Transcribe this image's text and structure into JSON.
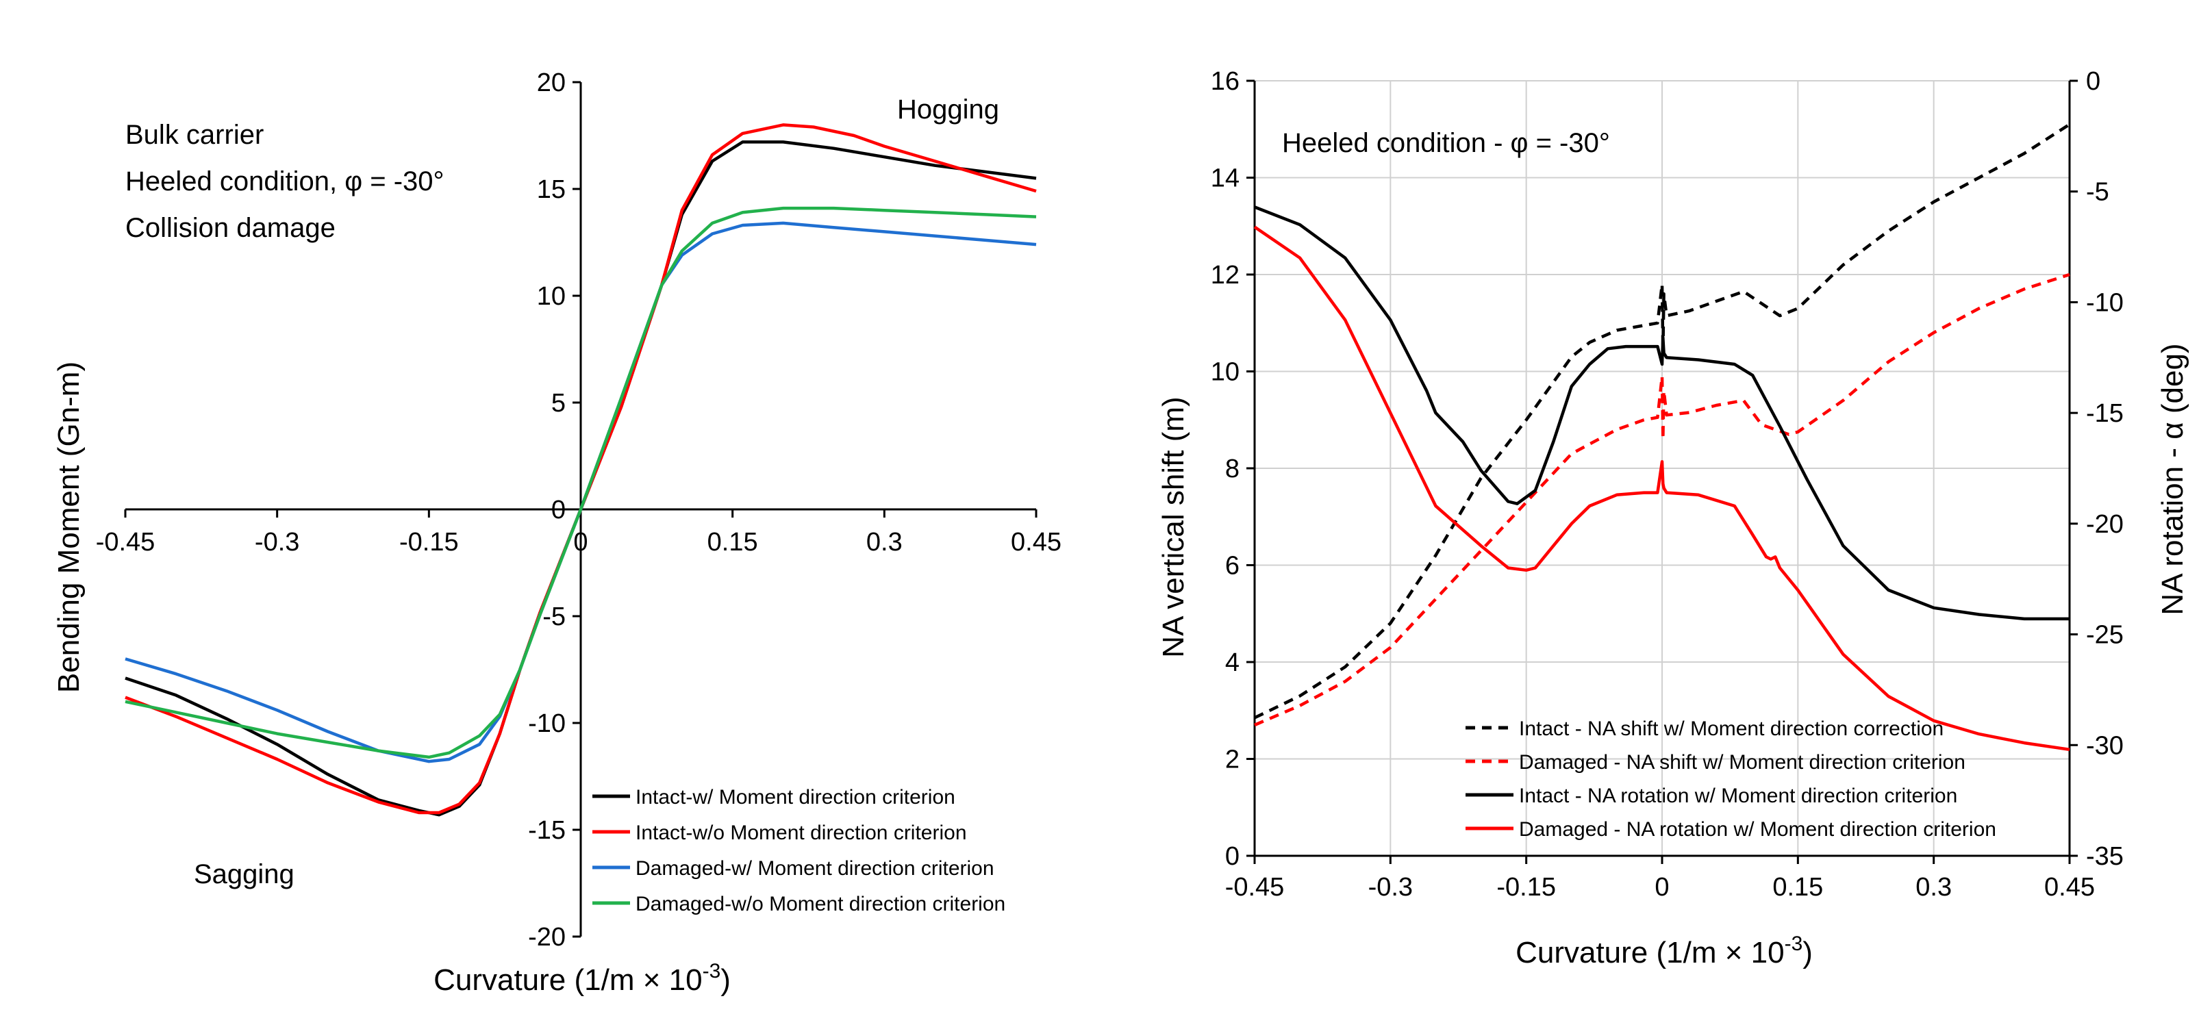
{
  "chart_data": [
    {
      "type": "line",
      "title": "",
      "xlabel": "Curvature (1/m × 10",
      "xlabel_sup": "-3",
      "xlabel_end": ")",
      "ylabel": "Bending Moment (Gn-m)",
      "xlim": [
        -0.45,
        0.45
      ],
      "ylim": [
        -20,
        20
      ],
      "xticks": [
        "-0.45",
        "-0.3",
        "-0.15",
        "0",
        "0.15",
        "0.3",
        "0.45"
      ],
      "xtick_values": [
        -0.45,
        -0.3,
        -0.15,
        0,
        0.15,
        0.3,
        0.45
      ],
      "yticks": [
        "-20",
        "-15",
        "-10",
        "-5",
        "0",
        "5",
        "10",
        "15",
        "20"
      ],
      "ytick_values": [
        -20,
        -15,
        -10,
        -5,
        0,
        5,
        10,
        15,
        20
      ],
      "grid": false,
      "legend_position": "bottom-right",
      "annotations": [
        "Bulk carrier",
        "Heeled condition, φ = -30°",
        "Collision damage",
        "Hogging",
        "Sagging"
      ],
      "series": [
        {
          "name": "Intact-w/ Moment direction criterion",
          "color": "#000000",
          "dash": "solid",
          "x": [
            -0.45,
            -0.4,
            -0.35,
            -0.3,
            -0.25,
            -0.2,
            -0.16,
            -0.14,
            -0.12,
            -0.1,
            -0.08,
            -0.06,
            -0.04,
            0,
            0.04,
            0.08,
            0.1,
            0.13,
            0.16,
            0.2,
            0.25,
            0.3,
            0.35,
            0.4,
            0.45
          ],
          "values": [
            -7.9,
            -8.7,
            -9.8,
            -11.0,
            -12.4,
            -13.6,
            -14.1,
            -14.3,
            -13.9,
            -12.9,
            -10.5,
            -7.5,
            -4.8,
            0,
            4.8,
            10.5,
            13.8,
            16.3,
            17.2,
            17.2,
            16.9,
            16.5,
            16.1,
            15.8,
            15.5
          ]
        },
        {
          "name": "Intact-w/o Moment direction criterion",
          "color": "#ff0000",
          "dash": "solid",
          "x": [
            -0.45,
            -0.4,
            -0.35,
            -0.3,
            -0.25,
            -0.2,
            -0.16,
            -0.14,
            -0.12,
            -0.1,
            -0.08,
            -0.06,
            -0.04,
            0,
            0.04,
            0.08,
            0.1,
            0.13,
            0.16,
            0.2,
            0.23,
            0.27,
            0.3,
            0.35,
            0.4,
            0.45
          ],
          "values": [
            -8.8,
            -9.7,
            -10.7,
            -11.7,
            -12.8,
            -13.7,
            -14.2,
            -14.2,
            -13.8,
            -12.8,
            -10.5,
            -7.5,
            -4.8,
            0,
            4.8,
            10.5,
            14.0,
            16.6,
            17.6,
            18.0,
            17.9,
            17.5,
            17.0,
            16.3,
            15.6,
            14.9
          ]
        },
        {
          "name": "Damaged-w/ Moment direction criterion",
          "color": "#1f6fd1",
          "dash": "solid",
          "x": [
            -0.45,
            -0.4,
            -0.35,
            -0.3,
            -0.25,
            -0.2,
            -0.15,
            -0.13,
            -0.1,
            -0.08,
            -0.06,
            -0.04,
            0,
            0.04,
            0.08,
            0.1,
            0.13,
            0.16,
            0.2,
            0.25,
            0.3,
            0.35,
            0.4,
            0.45
          ],
          "values": [
            -7.0,
            -7.7,
            -8.5,
            -9.4,
            -10.4,
            -11.3,
            -11.8,
            -11.7,
            -11.0,
            -9.7,
            -7.5,
            -4.9,
            0,
            5.2,
            10.5,
            11.9,
            12.9,
            13.3,
            13.4,
            13.2,
            13.0,
            12.8,
            12.6,
            12.4
          ]
        },
        {
          "name": "Damaged-w/o Moment direction criterion",
          "color": "#22b14c",
          "dash": "solid",
          "x": [
            -0.45,
            -0.4,
            -0.35,
            -0.3,
            -0.25,
            -0.2,
            -0.15,
            -0.13,
            -0.1,
            -0.08,
            -0.06,
            -0.04,
            0,
            0.04,
            0.08,
            0.1,
            0.13,
            0.16,
            0.2,
            0.25,
            0.3,
            0.35,
            0.4,
            0.45
          ],
          "values": [
            -9.0,
            -9.5,
            -10.0,
            -10.5,
            -10.9,
            -11.3,
            -11.6,
            -11.4,
            -10.6,
            -9.6,
            -7.5,
            -4.9,
            0,
            5.2,
            10.5,
            12.1,
            13.4,
            13.9,
            14.1,
            14.1,
            14.0,
            13.9,
            13.8,
            13.7
          ]
        }
      ]
    },
    {
      "type": "line",
      "title": "",
      "xlabel": "Curvature (1/m × 10",
      "xlabel_sup": "-3",
      "xlabel_end": ")",
      "ylabel": "NA vertical shift (m)",
      "y2label": "NA rotation - α (deg)",
      "xlim": [
        -0.45,
        0.45
      ],
      "ylim": [
        0,
        16
      ],
      "y2lim": [
        -35,
        0
      ],
      "xticks": [
        "-0.45",
        "-0.3",
        "-0.15",
        "0",
        "0.15",
        "0.3",
        "0.45"
      ],
      "xtick_values": [
        -0.45,
        -0.3,
        -0.15,
        0,
        0.15,
        0.3,
        0.45
      ],
      "yticks": [
        "0",
        "2",
        "4",
        "6",
        "8",
        "10",
        "12",
        "14",
        "16"
      ],
      "ytick_values": [
        0,
        2,
        4,
        6,
        8,
        10,
        12,
        14,
        16
      ],
      "y2ticks": [
        "0",
        "-5",
        "-10",
        "-15",
        "-20",
        "-25",
        "-30",
        "-35"
      ],
      "y2tick_values": [
        0,
        -5,
        -10,
        -15,
        -20,
        -25,
        -30,
        -35
      ],
      "grid": true,
      "legend_position": "bottom-right",
      "annotations": [
        "Heeled condition - φ = -30°"
      ],
      "series": [
        {
          "name": "Intact - NA shift w/ Moment direction correction",
          "color": "#000000",
          "dash": "dashed",
          "axis": "left",
          "x": [
            -0.45,
            -0.4,
            -0.35,
            -0.3,
            -0.25,
            -0.2,
            -0.15,
            -0.1,
            -0.08,
            -0.05,
            -0.02,
            -0.005,
            0.0,
            0.001,
            0.002,
            0.005,
            0.03,
            0.06,
            0.09,
            0.11,
            0.13,
            0.15,
            0.2,
            0.25,
            0.3,
            0.35,
            0.4,
            0.45
          ],
          "values": [
            2.85,
            3.3,
            3.9,
            4.8,
            6.2,
            7.8,
            9.0,
            10.3,
            10.6,
            10.85,
            10.95,
            11.0,
            11.8,
            10.4,
            11.6,
            11.15,
            11.25,
            11.45,
            11.65,
            11.4,
            11.15,
            11.3,
            12.2,
            12.9,
            13.5,
            14.0,
            14.5,
            15.1
          ]
        },
        {
          "name": "Damaged - NA shift w/ Moment direction criterion",
          "color": "#ff0000",
          "dash": "dashed",
          "axis": "left",
          "x": [
            -0.45,
            -0.4,
            -0.35,
            -0.3,
            -0.25,
            -0.2,
            -0.15,
            -0.1,
            -0.08,
            -0.05,
            -0.02,
            -0.005,
            0.0,
            0.001,
            0.002,
            0.005,
            0.03,
            0.06,
            0.09,
            0.11,
            0.14,
            0.15,
            0.2,
            0.25,
            0.3,
            0.35,
            0.4,
            0.45
          ],
          "values": [
            2.7,
            3.1,
            3.6,
            4.3,
            5.3,
            6.3,
            7.3,
            8.3,
            8.5,
            8.8,
            9.0,
            9.05,
            9.9,
            8.6,
            9.6,
            9.1,
            9.15,
            9.3,
            9.4,
            8.9,
            8.7,
            8.75,
            9.4,
            10.2,
            10.8,
            11.3,
            11.7,
            12.0
          ]
        },
        {
          "name": "Intact - NA rotation w/ Moment direction criterion",
          "color": "#000000",
          "dash": "solid",
          "axis": "right",
          "x": [
            -0.45,
            -0.4,
            -0.35,
            -0.3,
            -0.26,
            -0.25,
            -0.22,
            -0.2,
            -0.17,
            -0.16,
            -0.14,
            -0.12,
            -0.1,
            -0.08,
            -0.06,
            -0.04,
            -0.02,
            -0.005,
            0.0,
            0.001,
            0.002,
            0.005,
            0.04,
            0.08,
            0.1,
            0.13,
            0.16,
            0.2,
            0.25,
            0.3,
            0.35,
            0.4,
            0.45
          ],
          "values": [
            -5.7,
            -6.5,
            -8.0,
            -10.8,
            -14.0,
            -15.0,
            -16.3,
            -17.6,
            -19.0,
            -19.1,
            -18.5,
            -16.3,
            -13.8,
            -12.8,
            -12.1,
            -12.0,
            -12.0,
            -12.0,
            -12.8,
            -11.6,
            -12.3,
            -12.5,
            -12.6,
            -12.8,
            -13.3,
            -15.6,
            -18.0,
            -21.0,
            -23.0,
            -23.8,
            -24.1,
            -24.3,
            -24.3
          ]
        },
        {
          "name": "Damaged - NA rotation w/ Moment direction criterion",
          "color": "#ff0000",
          "dash": "solid",
          "axis": "right",
          "x": [
            -0.45,
            -0.4,
            -0.35,
            -0.3,
            -0.25,
            -0.2,
            -0.17,
            -0.15,
            -0.14,
            -0.12,
            -0.1,
            -0.08,
            -0.05,
            -0.02,
            -0.005,
            0.0,
            0.001,
            0.002,
            0.005,
            0.04,
            0.08,
            0.1,
            0.115,
            0.12,
            0.125,
            0.13,
            0.15,
            0.2,
            0.25,
            0.3,
            0.35,
            0.4,
            0.45
          ],
          "values": [
            -6.6,
            -8.0,
            -10.8,
            -15.0,
            -19.2,
            -21.0,
            -22.0,
            -22.1,
            -22.0,
            -21.0,
            -20.0,
            -19.2,
            -18.7,
            -18.6,
            -18.6,
            -17.2,
            -18.2,
            -18.4,
            -18.6,
            -18.7,
            -19.2,
            -20.5,
            -21.5,
            -21.6,
            -21.5,
            -22.0,
            -23.0,
            -25.9,
            -27.8,
            -28.9,
            -29.5,
            -29.9,
            -30.2
          ]
        }
      ]
    }
  ]
}
